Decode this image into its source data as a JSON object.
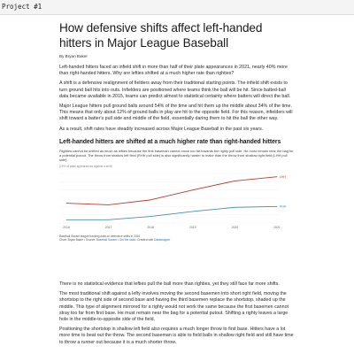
{
  "project": {
    "label": "Project #1"
  },
  "article": {
    "title": "How defensive shifts affect left-handed hitters in Major League Baseball",
    "byline": "By Bryan Baker",
    "paragraphs": [
      "Left-handed hitters faced an infield shift in more than half of their plate appearances in 2021, nearly 40% more than right-handed hitters. Why are lefties shifted at a much higher rate than righties?",
      "A shift is a defensive realignment of fielders away from their traditional starting points. The infield shift exists to turn ground ball hits into outs. Infielders are positioned where teams think the ball will be hit. Since batted-ball data became available in 2015, teams can predict almost to statistical certainty where batters will direct the ball.",
      "Major League hitters pull ground balls around 54% of the time and hit them up the middle about 34% of the time. This means that only about 12% of ground balls in play are hit to the opposite field. For this reason, infielders will shift toward a batter's pull side and middle of the field, essentially daring them to hit the ball the other way.",
      "As a result, shift rates have steadily increased across Major League Baseball in the past six years."
    ],
    "lower_paragraphs": [
      "There is no statistical evidence that lefties pull the ball more than righties, yet they still face far more shifts.",
      "The most traditional shift against a lefty involves moving the second basemen into short right field, moving the shortstop to the right side of second base and having the third basemen replace the shortstop, shaded up the middle. This type of alignment mirrored for a righty would not work the same because the first basemen cannot stray too far from first base. He must remain near the bag for a potential putout. Shifting a righty leaves a large hole in the middle-to-opposite side of the field.",
      "Positioning the shortstop in shallow left field also requires a much longer throw to first base. Hitters have a lot more time to beat out the throw. The second baseman is able to field balls in shallow right field and still have time to throw a runner out because it is a much shorter throw."
    ]
  },
  "chart": {
    "heading": "Left-handed hitters are shifted at a much higher rate than right-handed hitters",
    "description": "Righties cannot be shifted as much as lefties because the first baseman cannot move too far towards the righty pull side. He must remain near the bag for a potential putout. The throw from shallow left field (RHH pull side) is also significantly harder to make than the throw from shallow right field (LHH pull side).",
    "axis_title": "(20% of plate appearances against a shift)",
    "notes_source": "Baseball Savant league tracking data on defensive shifts in 2016",
    "notes_chart": "Chart: Bryan Baker",
    "notes_sep": " • Source: ",
    "source_link": "Baseball Savant",
    "notes_sep2": " • ",
    "get_data": "Get the data",
    "notes_sep3": " • Created with ",
    "created_with": "Datawrapper"
  },
  "chart_data": {
    "type": "line",
    "title": "Left-handed hitters are shifted at a much higher rate than right-handed hitters",
    "x": [
      2016,
      2017,
      2018,
      2019,
      2020,
      2021
    ],
    "x_tick_labels": [
      "2016",
      "2017",
      "2018",
      "2019",
      "2020",
      "2021"
    ],
    "ylim": [
      0,
      60
    ],
    "grid": true,
    "series": [
      {
        "name": "LHH",
        "color": "#c0392b",
        "values": [
          24,
          22,
          28,
          40,
          51,
          56
        ],
        "end_label": "LHH"
      },
      {
        "name": "RHH",
        "color": "#3f8fc4",
        "values": [
          4,
          4,
          8,
          14,
          19,
          20
        ],
        "end_label": "RHH"
      }
    ]
  }
}
